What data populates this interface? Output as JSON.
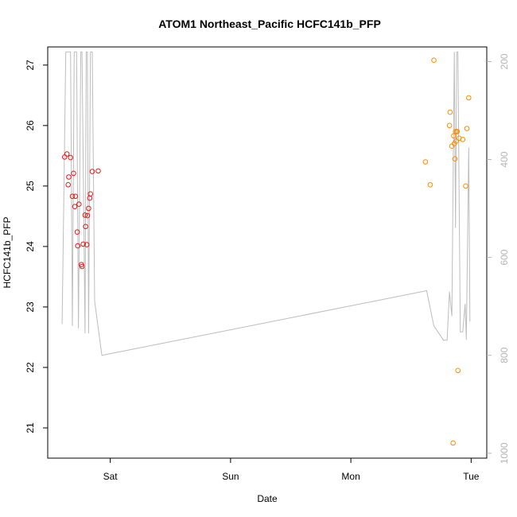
{
  "chart_data": {
    "type": "scatter",
    "title": "ATOM1 Northeast_Pacific HCFC141b_PFP",
    "xlabel": "Date",
    "ylabel": "HCFC141b_PFP",
    "x_ticks": [
      {
        "label": "Sat",
        "day": 1.0
      },
      {
        "label": "Sun",
        "day": 2.0
      },
      {
        "label": "Mon",
        "day": 3.0
      },
      {
        "label": "Tue",
        "day": 4.0
      }
    ],
    "xlim_days": [
      0.48,
      4.13
    ],
    "ylim": [
      20.5,
      27.3
    ],
    "y_ticks": [
      21,
      22,
      23,
      24,
      25,
      26,
      27
    ],
    "y2_ticks": [
      200,
      400,
      600,
      800,
      1000
    ],
    "y2lim_reversed": [
      1010,
      170
    ],
    "colors": {
      "series_red": "#e41a1c",
      "series_orange": "#ff8c00",
      "altitude": "#bdbdbd"
    },
    "series": [
      {
        "color": "red",
        "points": [
          [
            0.62,
            25.48
          ],
          [
            0.64,
            25.53
          ],
          [
            0.65,
            25.02
          ],
          [
            0.655,
            25.15
          ],
          [
            0.67,
            25.47
          ],
          [
            0.685,
            24.83
          ],
          [
            0.695,
            25.21
          ],
          [
            0.705,
            24.66
          ],
          [
            0.71,
            24.83
          ],
          [
            0.725,
            24.24
          ],
          [
            0.73,
            24.01
          ],
          [
            0.74,
            24.7
          ],
          [
            0.76,
            23.7
          ],
          [
            0.765,
            23.67
          ],
          [
            0.775,
            24.04
          ],
          [
            0.79,
            24.52
          ],
          [
            0.795,
            24.33
          ],
          [
            0.805,
            24.03
          ],
          [
            0.81,
            24.51
          ],
          [
            0.82,
            24.63
          ],
          [
            0.83,
            24.8
          ],
          [
            0.835,
            24.87
          ],
          [
            0.85,
            25.24
          ],
          [
            0.9,
            25.25
          ]
        ]
      },
      {
        "color": "orange",
        "points": [
          [
            3.62,
            25.4
          ],
          [
            3.66,
            25.02
          ],
          [
            3.69,
            27.08
          ],
          [
            3.82,
            26.0
          ],
          [
            3.825,
            26.22
          ],
          [
            3.84,
            25.66
          ],
          [
            3.85,
            20.75
          ],
          [
            3.855,
            25.83
          ],
          [
            3.86,
            25.7
          ],
          [
            3.865,
            25.45
          ],
          [
            3.87,
            25.9
          ],
          [
            3.875,
            25.74
          ],
          [
            3.88,
            25.9
          ],
          [
            3.885,
            25.9
          ],
          [
            3.89,
            21.95
          ],
          [
            3.9,
            25.79
          ],
          [
            3.93,
            25.77
          ],
          [
            3.955,
            25.0
          ],
          [
            3.965,
            25.95
          ],
          [
            3.98,
            26.46
          ]
        ]
      }
    ],
    "altitude_line": [
      [
        0.6,
        736
      ],
      [
        0.63,
        180
      ],
      [
        0.645,
        180
      ],
      [
        0.67,
        180
      ],
      [
        0.685,
        740
      ],
      [
        0.7,
        180
      ],
      [
        0.72,
        180
      ],
      [
        0.735,
        745
      ],
      [
        0.755,
        180
      ],
      [
        0.765,
        180
      ],
      [
        0.79,
        755
      ],
      [
        0.8,
        180
      ],
      [
        0.81,
        180
      ],
      [
        0.82,
        755
      ],
      [
        0.835,
        180
      ],
      [
        0.85,
        180
      ],
      [
        0.87,
        690
      ],
      [
        0.93,
        800
      ],
      [
        3.63,
        668
      ],
      [
        3.69,
        740
      ],
      [
        3.77,
        769
      ],
      [
        3.8,
        769
      ],
      [
        3.82,
        670
      ],
      [
        3.84,
        720
      ],
      [
        3.86,
        180
      ],
      [
        3.87,
        540
      ],
      [
        3.88,
        180
      ],
      [
        3.89,
        180
      ],
      [
        3.91,
        752
      ],
      [
        3.93,
        752
      ],
      [
        3.95,
        695
      ],
      [
        3.96,
        768
      ],
      [
        3.98,
        375
      ],
      [
        3.99,
        731
      ]
    ]
  }
}
